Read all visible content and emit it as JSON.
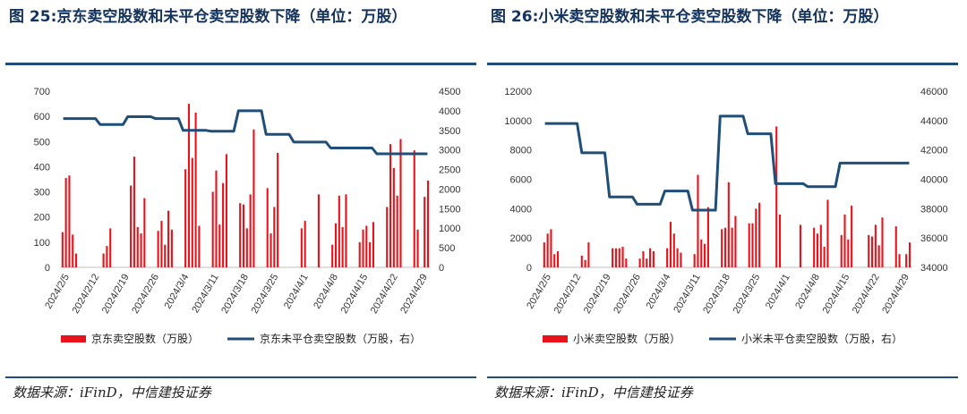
{
  "charts": [
    {
      "title": "图 25:京东卖空股数和未平仓卖空股数下降（单位：万股）",
      "source": "数据来源：iFinD，中信建投证券",
      "chart_data": {
        "type": "bar+line",
        "title": "",
        "xlabel": "",
        "ylabel_left": "",
        "ylabel_right": "",
        "x_tick_labels": [
          "2024/2/5",
          "2024/2/12",
          "2024/2/19",
          "2024/2/26",
          "2024/3/4",
          "2024/3/11",
          "2024/3/18",
          "2024/3/25",
          "2024/4/1",
          "2024/4/8",
          "2024/4/15",
          "2024/4/22",
          "2024/4/29"
        ],
        "ylim_left": [
          0,
          700
        ],
        "yticks_left": [
          0,
          100,
          200,
          300,
          400,
          500,
          600,
          700
        ],
        "ylim_right": [
          0,
          4500
        ],
        "yticks_right": [
          0,
          500,
          1000,
          1500,
          2000,
          2500,
          3000,
          3500,
          4000,
          4500
        ],
        "legend_position": "bottom",
        "bar_series": {
          "name": "京东卖空股数（万股）",
          "color": "#e8121a",
          "values": [
            140,
            355,
            365,
            130,
            55,
            null,
            null,
            null,
            null,
            null,
            null,
            null,
            55,
            85,
            155,
            null,
            null,
            null,
            null,
            null,
            325,
            440,
            160,
            135,
            275,
            null,
            null,
            null,
            145,
            185,
            90,
            225,
            150,
            null,
            null,
            null,
            390,
            650,
            435,
            615,
            165,
            null,
            null,
            null,
            300,
            385,
            170,
            335,
            450,
            null,
            null,
            null,
            255,
            250,
            155,
            290,
            548,
            null,
            null,
            null,
            315,
            135,
            240,
            455,
            null,
            null,
            null,
            null,
            null,
            null,
            155,
            185,
            null,
            null,
            null,
            290,
            null,
            null,
            null,
            90,
            175,
            285,
            160,
            290,
            null,
            null,
            null,
            100,
            150,
            165,
            100,
            180,
            null,
            null,
            null,
            240,
            490,
            395,
            285,
            510,
            null,
            null,
            null,
            465,
            150,
            null,
            280,
            345
          ]
        },
        "line_series": {
          "name": "京东未平仓卖空股数（万股，右）",
          "color": "#1f4e79",
          "values": [
            3800,
            3800,
            3800,
            3800,
            3800,
            3800,
            3800,
            3800,
            3650,
            3650,
            3650,
            3650,
            3650,
            3650,
            3850,
            3850,
            3850,
            3850,
            3850,
            3850,
            3800,
            3800,
            3800,
            3800,
            3800,
            3800,
            3500,
            3500,
            3500,
            3500,
            3500,
            3500,
            3480,
            3480,
            3480,
            3480,
            3480,
            3480,
            4000,
            4000,
            4000,
            4000,
            4000,
            4000,
            3400,
            3400,
            3400,
            3400,
            3400,
            3400,
            3200,
            3200,
            3200,
            3200,
            3200,
            3200,
            3200,
            3200,
            3050,
            3050,
            3050,
            3050,
            3050,
            3050,
            3050,
            3050,
            3050,
            3050,
            2900,
            2900,
            2900,
            2900,
            2900,
            2900,
            2900,
            2900,
            2900,
            2900,
            2900,
            2900
          ]
        }
      }
    },
    {
      "title": "图 26:小米卖空股数和未平仓卖空股数下降（单位：万股）",
      "source": "数据来源：iFinD，中信建投证券",
      "chart_data": {
        "type": "bar+line",
        "title": "",
        "xlabel": "",
        "ylabel_left": "",
        "ylabel_right": "",
        "x_tick_labels": [
          "2024/2/5",
          "2024/2/12",
          "2024/2/19",
          "2024/2/26",
          "2024/3/4",
          "2024/3/11",
          "2024/3/18",
          "2024/3/25",
          "2024/4/1",
          "2024/4/8",
          "2024/4/15",
          "2024/4/22",
          "2024/4/29"
        ],
        "ylim_left": [
          0,
          12000
        ],
        "yticks_left": [
          0,
          2000,
          4000,
          6000,
          8000,
          10000,
          12000
        ],
        "ylim_right": [
          34000,
          46000
        ],
        "yticks_right": [
          34000,
          36000,
          38000,
          40000,
          42000,
          44000,
          46000
        ],
        "legend_position": "bottom",
        "bar_series": {
          "name": "小米卖空股数（万股）",
          "color": "#e8121a",
          "values": [
            1700,
            2300,
            2600,
            900,
            1100,
            null,
            null,
            null,
            null,
            null,
            null,
            800,
            500,
            1700,
            null,
            null,
            null,
            null,
            null,
            null,
            1300,
            1300,
            1300,
            1400,
            600,
            null,
            null,
            null,
            600,
            1100,
            600,
            1300,
            1100,
            null,
            null,
            null,
            1300,
            3100,
            2300,
            1300,
            1000,
            null,
            null,
            null,
            900,
            6300,
            1900,
            1600,
            4100,
            null,
            null,
            null,
            2600,
            2700,
            5800,
            2700,
            3500,
            null,
            null,
            null,
            3000,
            3000,
            4000,
            4400,
            null,
            null,
            null,
            null,
            9600,
            3600,
            null,
            null,
            null,
            null,
            null,
            2900,
            null,
            null,
            null,
            2700,
            2300,
            2900,
            1400,
            4600,
            null,
            null,
            null,
            2200,
            3600,
            1900,
            4200,
            null,
            null,
            null,
            null,
            2200,
            2100,
            2900,
            1500,
            3400,
            null,
            null,
            null,
            2800,
            900,
            null,
            900,
            1700
          ]
        },
        "line_series": {
          "name": "小米未平仓卖空股数（万股，右）",
          "color": "#1f4e79",
          "values": [
            43800,
            43800,
            43800,
            43800,
            43800,
            43800,
            43800,
            43800,
            41800,
            41800,
            41800,
            41800,
            41800,
            41800,
            38800,
            38800,
            38800,
            38800,
            38800,
            38800,
            38300,
            38300,
            38300,
            38300,
            38300,
            38300,
            39200,
            39200,
            39200,
            39200,
            39200,
            39200,
            37900,
            37900,
            37900,
            37900,
            37900,
            37900,
            44300,
            44300,
            44300,
            44300,
            44300,
            44300,
            43100,
            43100,
            43100,
            43100,
            43100,
            43100,
            39700,
            39700,
            39700,
            39700,
            39700,
            39700,
            39700,
            39500,
            39500,
            39500,
            39500,
            39500,
            39500,
            39500,
            41100,
            41100,
            41100,
            41100,
            41100,
            41100,
            41100,
            41100,
            41100,
            41100,
            41100,
            41100,
            41100,
            41100,
            41100,
            41100
          ]
        }
      }
    }
  ]
}
